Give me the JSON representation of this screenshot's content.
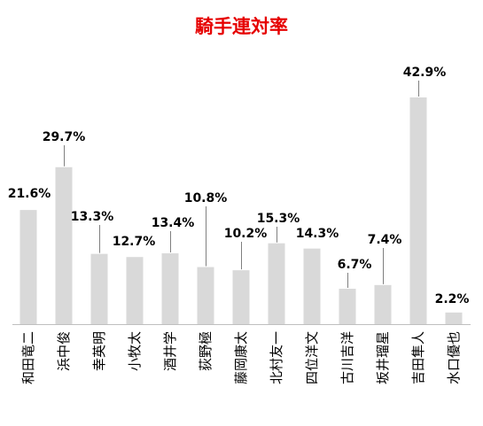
{
  "chart_data": {
    "type": "bar",
    "title": "騎手連対率",
    "categories": [
      "和田竜二",
      "浜中俊",
      "幸英明",
      "小牧太",
      "酒井学",
      "荻野極",
      "藤岡康太",
      "北村友一",
      "四位洋文",
      "古川吉洋",
      "坂井瑠星",
      "吉田隼人",
      "水口優也"
    ],
    "values": [
      21.6,
      29.7,
      13.3,
      12.7,
      13.4,
      10.8,
      10.2,
      15.3,
      14.3,
      6.7,
      7.4,
      42.9,
      2.2
    ],
    "value_labels": [
      "21.6%",
      "29.7%",
      "13.3%",
      "12.7%",
      "13.4%",
      "10.8%",
      "10.2%",
      "15.3%",
      "14.3%",
      "6.7%",
      "7.4%",
      "42.9%",
      "2.2%"
    ],
    "ylim": [
      0,
      45
    ],
    "xlabel": "",
    "ylabel": "",
    "grid": false,
    "colors": {
      "bar": "#d9d9d9",
      "title": "#e60000",
      "highlight_label": "#e60000",
      "label": "#000000"
    },
    "highlight_index": 11
  }
}
